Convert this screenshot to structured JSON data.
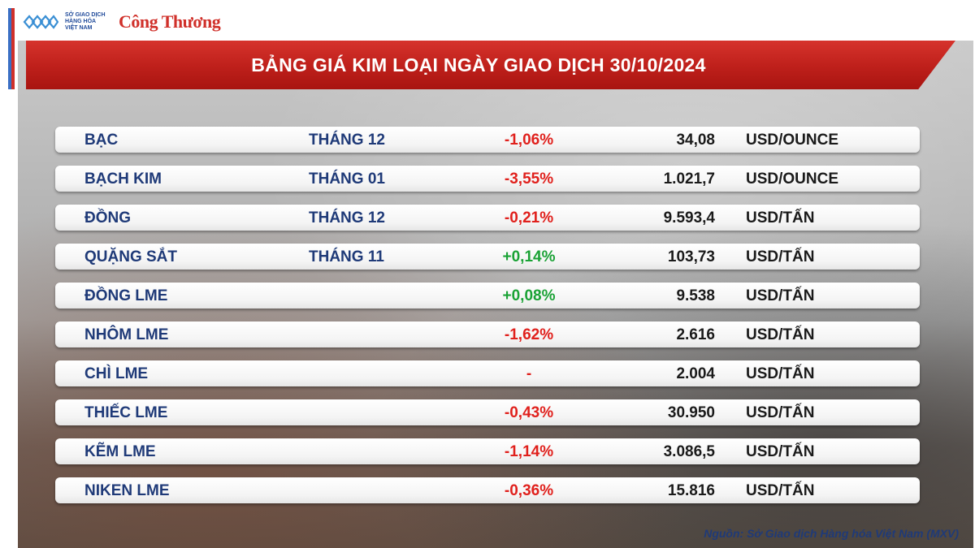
{
  "logos": {
    "sgd_lines": [
      "SỞ GIAO DỊCH",
      "HÀNG HÓA",
      "VIỆT NAM"
    ],
    "brand": "Công Thương"
  },
  "title": "BẢNG GIÁ KIM LOẠI NGÀY GIAO DỊCH 30/10/2024",
  "rows": [
    {
      "name": "BẠC",
      "month": "THÁNG 12",
      "change": "-1,06%",
      "direction": "neg",
      "price": "34,08",
      "unit": "USD/OUNCE"
    },
    {
      "name": "BẠCH KIM",
      "month": "THÁNG 01",
      "change": "-3,55%",
      "direction": "neg",
      "price": "1.021,7",
      "unit": "USD/OUNCE"
    },
    {
      "name": "ĐỒNG",
      "month": "THÁNG 12",
      "change": "-0,21%",
      "direction": "neg",
      "price": "9.593,4",
      "unit": "USD/TẤN"
    },
    {
      "name": "QUẶNG SẮT",
      "month": "THÁNG 11",
      "change": "+0,14%",
      "direction": "pos",
      "price": "103,73",
      "unit": "USD/TẤN"
    },
    {
      "name": "ĐỒNG LME",
      "month": "",
      "change": "+0,08%",
      "direction": "pos",
      "price": "9.538",
      "unit": "USD/TẤN"
    },
    {
      "name": "NHÔM LME",
      "month": "",
      "change": "-1,62%",
      "direction": "neg",
      "price": "2.616",
      "unit": "USD/TẤN"
    },
    {
      "name": "CHÌ LME",
      "month": "",
      "change": "-",
      "direction": "flat",
      "price": "2.004",
      "unit": "USD/TẤN"
    },
    {
      "name": "THIẾC LME",
      "month": "",
      "change": "-0,43%",
      "direction": "neg",
      "price": "30.950",
      "unit": "USD/TẤN"
    },
    {
      "name": "KẼM LME",
      "month": "",
      "change": "-1,14%",
      "direction": "neg",
      "price": "3.086,5",
      "unit": "USD/TẤN"
    },
    {
      "name": "NIKEN LME",
      "month": "",
      "change": "-0,36%",
      "direction": "neg",
      "price": "15.816",
      "unit": "USD/TẤN"
    }
  ],
  "source": "Nguồn: Sở Giao dịch Hàng hóa Việt Nam (MXV)",
  "colors": {
    "title_bar": "#c0211c",
    "text_blue": "#1f3a78",
    "negative": "#e0201c",
    "positive": "#1aa235"
  }
}
